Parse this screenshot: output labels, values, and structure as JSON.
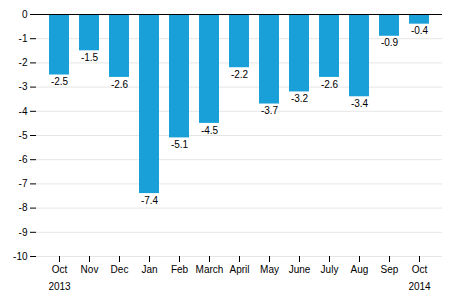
{
  "chart_data": {
    "type": "bar",
    "categories": [
      "Oct",
      "Nov",
      "Dec",
      "Jan",
      "Feb",
      "March",
      "April",
      "May",
      "June",
      "July",
      "Aug",
      "Sep",
      "Oct"
    ],
    "values": [
      -2.5,
      -1.5,
      -2.6,
      -7.4,
      -5.1,
      -4.5,
      -2.2,
      -3.7,
      -3.2,
      -2.6,
      -3.4,
      -0.9,
      -0.4
    ],
    "color": "#1aa0d8",
    "ylim": [
      -10,
      0
    ],
    "yticks": [
      0,
      -1,
      -2,
      -3,
      -4,
      -5,
      -6,
      -7,
      -8,
      -9,
      -10
    ],
    "grid": true,
    "data_labels": true,
    "annotations": [
      {
        "text": "2013",
        "x": 0
      },
      {
        "text": "2014",
        "x": 12
      }
    ]
  }
}
